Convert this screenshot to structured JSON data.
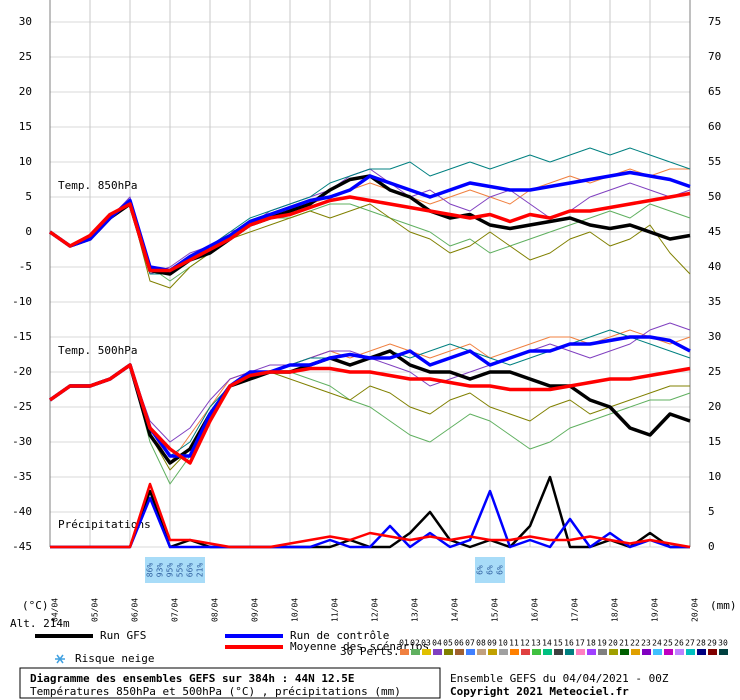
{
  "chart_data": {
    "type": "line",
    "x": [
      0,
      0.5,
      1,
      1.5,
      2,
      2.5,
      3,
      3.5,
      4,
      4.5,
      5,
      5.5,
      6,
      6.5,
      7,
      7.5,
      8,
      8.5,
      9,
      9.5,
      10,
      10.5,
      11,
      11.5,
      12,
      12.5,
      13,
      13.5,
      14,
      14.5,
      15,
      15.5,
      16
    ],
    "xlim": [
      0,
      16
    ],
    "xticks": [
      {
        "value": 0,
        "label": "04/04"
      },
      {
        "value": 1,
        "label": "05/04"
      },
      {
        "value": 2,
        "label": "06/04"
      },
      {
        "value": 3,
        "label": "07/04"
      },
      {
        "value": 4,
        "label": "08/04"
      },
      {
        "value": 5,
        "label": "09/04"
      },
      {
        "value": 6,
        "label": "10/04"
      },
      {
        "value": 7,
        "label": "11/04"
      },
      {
        "value": 8,
        "label": "12/04"
      },
      {
        "value": 9,
        "label": "13/04"
      },
      {
        "value": 10,
        "label": "14/04"
      },
      {
        "value": 11,
        "label": "15/04"
      },
      {
        "value": 12,
        "label": "16/04"
      },
      {
        "value": 13,
        "label": "17/04"
      },
      {
        "value": 14,
        "label": "18/04"
      },
      {
        "value": 15,
        "label": "19/04"
      },
      {
        "value": 16,
        "label": "20/04"
      }
    ],
    "ylim": [
      -45,
      30
    ],
    "yticks": [
      30,
      25,
      20,
      15,
      10,
      5,
      0,
      -5,
      -10,
      -15,
      -20,
      -25,
      -30,
      -35,
      -40,
      -45
    ],
    "y2lim": [
      0,
      75
    ],
    "y2ticks": [
      75,
      70,
      65,
      60,
      55,
      50,
      45,
      40,
      35,
      30,
      25,
      20,
      15,
      10,
      5,
      0
    ],
    "y_label": "(°C)",
    "y2_label": "(mm)",
    "grid": true,
    "annotations": [
      "Temp. 850hPa",
      "Temp. 500hPa",
      "Précipitations",
      "Alt. 214m"
    ],
    "series": [
      {
        "color": "#f08040",
        "values": [
          0,
          -2,
          -1,
          2,
          4,
          -6,
          -6,
          -4,
          -2,
          -1,
          1,
          2,
          3,
          4,
          5,
          6,
          7,
          6,
          5,
          4,
          5,
          6,
          5,
          4,
          6,
          7,
          8,
          7,
          8,
          9,
          8,
          9,
          9
        ]
      },
      {
        "color": "#60b060",
        "values": [
          0,
          -2,
          -1,
          2,
          4,
          -5,
          -7,
          -5,
          -3,
          -1,
          1,
          2,
          2,
          3,
          4,
          4,
          3,
          2,
          1,
          0,
          -2,
          -1,
          -3,
          -2,
          -1,
          0,
          1,
          2,
          3,
          2,
          4,
          3,
          2
        ]
      },
      {
        "color": "#8040c0",
        "values": [
          0,
          -2,
          -1,
          2,
          5,
          -6,
          -5,
          -3,
          -2,
          0,
          1,
          3,
          4,
          5,
          6,
          8,
          9,
          7,
          5,
          6,
          4,
          3,
          5,
          6,
          4,
          2,
          3,
          5,
          6,
          7,
          6,
          5,
          6
        ]
      },
      {
        "color": "#808000",
        "values": [
          0,
          -2,
          -1,
          2,
          4,
          -7,
          -8,
          -5,
          -3,
          -1,
          0,
          1,
          2,
          3,
          2,
          3,
          4,
          2,
          0,
          -1,
          -3,
          -2,
          0,
          -2,
          -4,
          -3,
          -1,
          0,
          -2,
          -1,
          1,
          -3,
          -6
        ]
      },
      {
        "color": "#008080",
        "values": [
          0,
          -2,
          -1,
          2,
          4,
          -6,
          -6,
          -4,
          -2,
          0,
          2,
          3,
          4,
          5,
          7,
          8,
          9,
          9,
          10,
          8,
          9,
          10,
          9,
          10,
          11,
          10,
          11,
          12,
          11,
          12,
          11,
          10,
          9
        ]
      },
      {
        "color": "#f08040",
        "values": [
          -24,
          -22,
          -22,
          -21,
          -19,
          -28,
          -33,
          -29,
          -25,
          -21,
          -20,
          -20,
          -19,
          -18,
          -17,
          -18,
          -17,
          -16,
          -17,
          -18,
          -17,
          -16,
          -18,
          -17,
          -16,
          -15,
          -15,
          -16,
          -15,
          -14,
          -15,
          -16,
          -15
        ]
      },
      {
        "color": "#60b060",
        "values": [
          -24,
          -22,
          -22,
          -21,
          -19,
          -30,
          -36,
          -32,
          -26,
          -22,
          -20,
          -20,
          -20,
          -21,
          -22,
          -24,
          -25,
          -27,
          -29,
          -30,
          -28,
          -26,
          -27,
          -29,
          -31,
          -30,
          -28,
          -27,
          -26,
          -25,
          -24,
          -24,
          -23
        ]
      },
      {
        "color": "#8040c0",
        "values": [
          -24,
          -22,
          -22,
          -21,
          -19,
          -27,
          -30,
          -28,
          -24,
          -21,
          -20,
          -19,
          -19,
          -18,
          -17,
          -17,
          -18,
          -19,
          -20,
          -22,
          -21,
          -20,
          -19,
          -18,
          -17,
          -16,
          -17,
          -18,
          -17,
          -16,
          -14,
          -13,
          -14
        ]
      },
      {
        "color": "#808000",
        "values": [
          -24,
          -22,
          -22,
          -21,
          -19,
          -29,
          -34,
          -31,
          -26,
          -22,
          -21,
          -20,
          -21,
          -22,
          -23,
          -24,
          -22,
          -23,
          -25,
          -26,
          -24,
          -23,
          -25,
          -26,
          -27,
          -25,
          -24,
          -26,
          -25,
          -24,
          -23,
          -22,
          -22
        ]
      },
      {
        "color": "#008080",
        "values": [
          -24,
          -22,
          -22,
          -21,
          -19,
          -28,
          -32,
          -30,
          -25,
          -22,
          -20,
          -20,
          -19,
          -18,
          -18,
          -19,
          -18,
          -17,
          -18,
          -17,
          -16,
          -17,
          -18,
          -19,
          -18,
          -17,
          -16,
          -15,
          -14,
          -15,
          -16,
          -17,
          -18
        ]
      },
      {
        "name": "Run GFS",
        "color": "#000000",
        "values": [
          0,
          -2,
          -1,
          2,
          4,
          -5.5,
          -6,
          -4,
          -3,
          -1,
          1,
          2,
          3,
          4,
          6,
          7.5,
          8,
          6,
          5,
          3,
          2,
          2.5,
          1,
          0.5,
          1,
          1.5,
          2,
          1,
          0.5,
          1,
          0,
          -1,
          -0.5
        ]
      },
      {
        "name": "Run GFS",
        "color": "#000000",
        "values": [
          -24,
          -22,
          -22,
          -21,
          -19,
          -29,
          -33,
          -31,
          -26,
          -22,
          -21,
          -20,
          -20,
          -19,
          -18,
          -19,
          -18,
          -17,
          -19,
          -20,
          -20,
          -21,
          -20,
          -20,
          -21,
          -22,
          -22,
          -24,
          -25,
          -28,
          -29,
          -26,
          -27
        ]
      },
      {
        "name": "Run GFS",
        "color": "#000000",
        "axis": "y2",
        "values": [
          0,
          0,
          0,
          0,
          0,
          8,
          0,
          1,
          0,
          0,
          0,
          0,
          0,
          0,
          0,
          1,
          0,
          0,
          2,
          5,
          1,
          0,
          1,
          0,
          3,
          10,
          0,
          0,
          1,
          0,
          2,
          0,
          0
        ]
      },
      {
        "name": "Run de contrôle",
        "color": "#0000ff",
        "values": [
          0,
          -2,
          -1,
          2,
          4.5,
          -5,
          -5.5,
          -3.5,
          -2,
          -0.5,
          1.5,
          2.5,
          3.5,
          4.5,
          5,
          6,
          8,
          7,
          6,
          5,
          6,
          7,
          6.5,
          6,
          6,
          6.5,
          7,
          7.5,
          8,
          8.5,
          8,
          7.5,
          6.5
        ]
      },
      {
        "name": "Run de contrôle",
        "color": "#0000ff",
        "values": [
          -24,
          -22,
          -22,
          -21,
          -19,
          -28,
          -32,
          -32,
          -26,
          -22,
          -20,
          -20,
          -19,
          -19,
          -18,
          -17.5,
          -18,
          -18,
          -17,
          -19,
          -18,
          -17,
          -19,
          -18,
          -17,
          -17,
          -16,
          -16,
          -15.5,
          -15,
          -15,
          -15.5,
          -17
        ]
      },
      {
        "name": "Run de contrôle",
        "color": "#0000ff",
        "axis": "y2",
        "values": [
          0,
          0,
          0,
          0,
          0,
          7,
          0,
          0,
          0,
          0,
          0,
          0,
          0,
          0,
          1,
          0,
          0,
          3,
          0,
          2,
          0,
          1,
          8,
          0,
          1,
          0,
          4,
          0,
          2,
          0,
          1,
          0,
          0
        ]
      },
      {
        "name": "Moyenne des scénarios",
        "color": "#ff0000",
        "values": [
          0,
          -2,
          -0.5,
          2.5,
          4,
          -5.5,
          -5.5,
          -4,
          -2.5,
          -1,
          1,
          2,
          2.5,
          3.5,
          4.5,
          5,
          4.5,
          4,
          3.5,
          3,
          2.5,
          2,
          2.5,
          1.5,
          2.5,
          2,
          3,
          3,
          3.5,
          4,
          4.5,
          5,
          5.5
        ]
      },
      {
        "name": "Moyenne des scénarios",
        "color": "#ff0000",
        "values": [
          -24,
          -22,
          -22,
          -21,
          -19,
          -28,
          -31,
          -33,
          -27,
          -22,
          -20.5,
          -20,
          -20,
          -19.5,
          -19.5,
          -20,
          -20,
          -20.5,
          -21,
          -21,
          -21.5,
          -22,
          -22,
          -22.5,
          -22.5,
          -22.5,
          -22,
          -21.5,
          -21,
          -21,
          -20.5,
          -20,
          -19.5
        ]
      },
      {
        "name": "Moyenne des scénarios",
        "color": "#ff0000",
        "axis": "y2",
        "values": [
          0,
          0,
          0,
          0,
          0,
          9,
          1,
          1,
          0.5,
          0,
          0,
          0,
          0.5,
          1,
          1.5,
          1,
          2,
          1.5,
          1,
          1.5,
          1,
          1.5,
          1,
          1,
          1.5,
          1,
          1,
          1.5,
          1,
          0.5,
          1,
          0.5,
          0
        ]
      }
    ],
    "snow_risk": {
      "title": "Risque neige",
      "x": [
        2.5,
        2.75,
        3,
        3.25,
        3.5,
        3.75,
        10.75,
        11,
        11.25
      ],
      "values": [
        86,
        93,
        95,
        55,
        66,
        21,
        6,
        6,
        6
      ],
      "value_labels": [
        "86%",
        "93%",
        "95%",
        "55%",
        "66%",
        "21%",
        "6%",
        "6%",
        "6%"
      ]
    },
    "perturbations": {
      "title": "30 Perts.",
      "labels": [
        "01",
        "02",
        "03",
        "04",
        "05",
        "06",
        "07",
        "08",
        "09",
        "10",
        "11",
        "12",
        "13",
        "14",
        "15",
        "16",
        "17",
        "18",
        "19",
        "20",
        "21",
        "22",
        "23",
        "24",
        "25",
        "26",
        "27",
        "28",
        "29",
        "30"
      ],
      "colors": [
        "#f08040",
        "#60b060",
        "#e0c000",
        "#8040c0",
        "#808000",
        "#a06030",
        "#4080ff",
        "#c0a080",
        "#c0a000",
        "#a0a0a0",
        "#ff8000",
        "#e04040",
        "#40c040",
        "#00c080",
        "#404040",
        "#008080",
        "#ff80c0",
        "#a040ff",
        "#808080",
        "#a0a000",
        "#006000",
        "#e0a000",
        "#8000c0",
        "#40c0ff",
        "#c000c0",
        "#c080ff",
        "#00c0c0",
        "#000080",
        "#800000",
        "#004040"
      ]
    },
    "footer": {
      "title": "Diagramme des ensembles GEFS sur 384h : 44N 12.5E",
      "subtitle": "Températures 850hPa et 500hPa (°C) , précipitations (mm)",
      "run": "Ensemble GEFS du 04/04/2021 - 00Z",
      "copyright": "Copyright 2021 Meteociel.fr"
    }
  }
}
